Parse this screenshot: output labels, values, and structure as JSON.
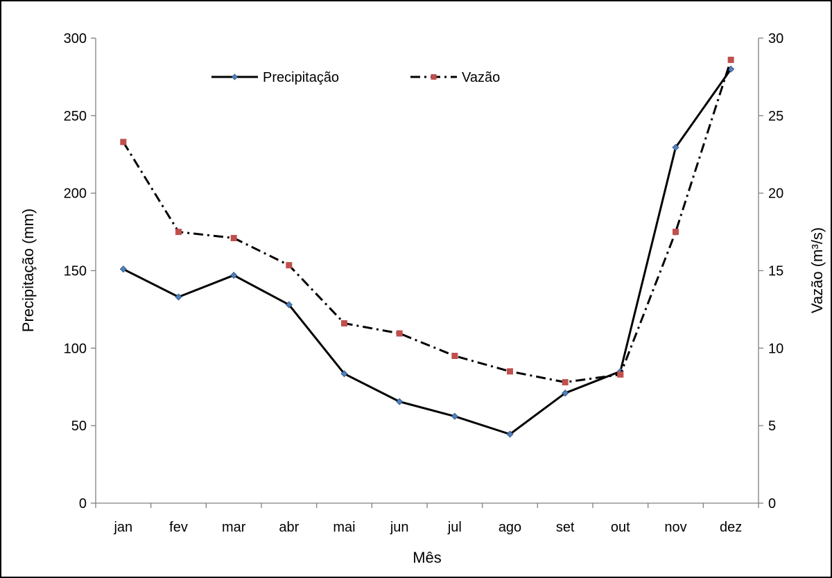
{
  "chart_data": {
    "type": "line",
    "categories": [
      "jan",
      "fev",
      "mar",
      "abr",
      "mai",
      "jun",
      "jul",
      "ago",
      "set",
      "out",
      "nov",
      "dez"
    ],
    "xlabel": "Mês",
    "ylabel": "Precipitação (mm)",
    "y2label": "Vazão (m³/s)",
    "ylim": [
      0,
      300
    ],
    "y2lim": [
      0,
      30
    ],
    "yticks": [
      "0",
      "50",
      "100",
      "150",
      "200",
      "250",
      "300"
    ],
    "y2ticks": [
      "0",
      "5",
      "10",
      "15",
      "20",
      "25",
      "30"
    ],
    "grid": false,
    "legend_position": "top-center",
    "series": [
      {
        "name": "Precipitação",
        "axis": "left",
        "color": "#000000",
        "marker_color": "#4f81bd",
        "line_style": "solid",
        "values": [
          151,
          133,
          147,
          128,
          83.5,
          65.5,
          56,
          44.5,
          71,
          85,
          229.5,
          280
        ]
      },
      {
        "name": "Vazão",
        "axis": "right",
        "color": "#000000",
        "marker_color": "#c0504d",
        "line_style": "dash-dot",
        "values": [
          23.3,
          17.5,
          17.1,
          15.35,
          11.6,
          10.95,
          9.5,
          8.5,
          7.8,
          8.3,
          17.5,
          28.6
        ]
      }
    ]
  }
}
